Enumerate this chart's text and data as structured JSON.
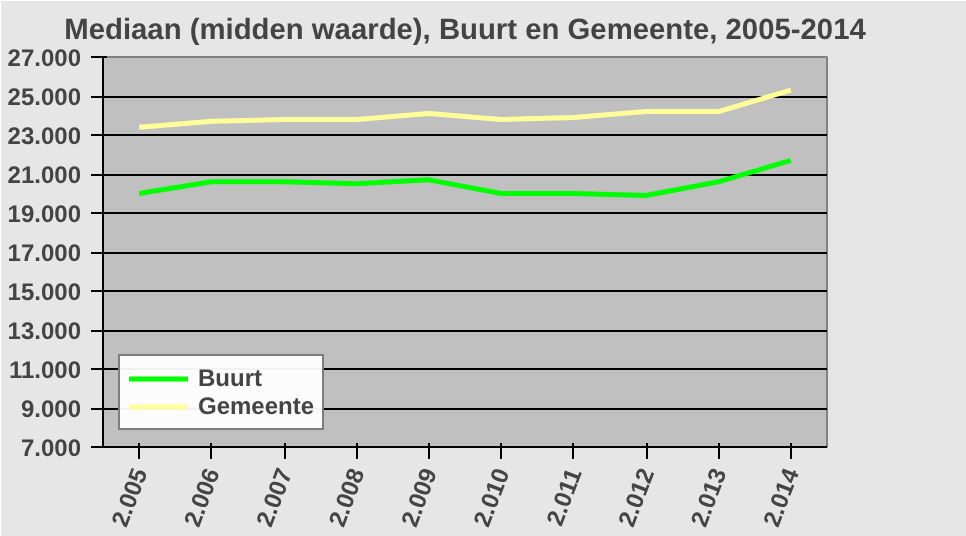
{
  "chart_data": {
    "type": "line",
    "title": "Mediaan (midden waarde), Buurt en Gemeente, 2005-2014",
    "categories": [
      "2.005",
      "2.006",
      "2.007",
      "2.008",
      "2.009",
      "2.010",
      "2.011",
      "2.012",
      "2.013",
      "2.014"
    ],
    "series": [
      {
        "name": "Buurt",
        "color": "#00ff00",
        "values": [
          20000,
          20600,
          20600,
          20500,
          20700,
          20000,
          20000,
          19900,
          20600,
          21700
        ]
      },
      {
        "name": "Gemeente",
        "color": "#ffff99",
        "values": [
          23400,
          23700,
          23800,
          23800,
          24100,
          23800,
          23900,
          24200,
          24200,
          25300
        ]
      }
    ],
    "ylim": [
      7000,
      27000
    ],
    "yticks": [
      {
        "value": 7000,
        "label": "7.000"
      },
      {
        "value": 9000,
        "label": "9.000"
      },
      {
        "value": 11000,
        "label": "11.000"
      },
      {
        "value": 13000,
        "label": "13.000"
      },
      {
        "value": 15000,
        "label": "15.000"
      },
      {
        "value": 17000,
        "label": "17.000"
      },
      {
        "value": 19000,
        "label": "19.000"
      },
      {
        "value": 21000,
        "label": "21.000"
      },
      {
        "value": 23000,
        "label": "23.000"
      },
      {
        "value": 25000,
        "label": "25.000"
      },
      {
        "value": 27000,
        "label": "27.000"
      }
    ],
    "grid": "y",
    "legend": "bottom left",
    "marker": "none",
    "line_style": "solid"
  }
}
